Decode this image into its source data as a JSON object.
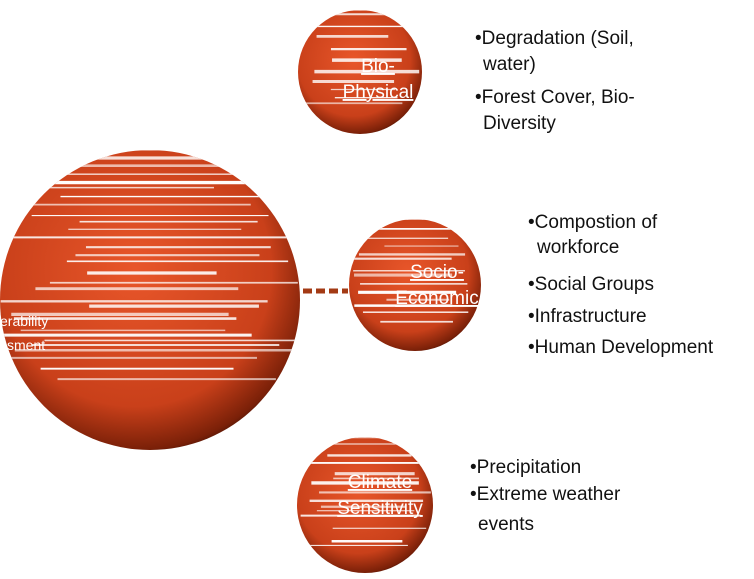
{
  "center": {
    "label_lines": [
      "erability",
      "ssment"
    ]
  },
  "nodes": [
    {
      "label_lines": [
        "Bio-",
        "Physical"
      ],
      "bullets": [
        "•Degradation (Soil,",
        "water)",
        "•Forest Cover, Bio-",
        "Diversity"
      ]
    },
    {
      "label_lines": [
        "Socio-",
        "Economic"
      ],
      "bullets": [
        "•Compostion of",
        "workforce",
        "•Social Groups",
        "•Infrastructure",
        "•Human Development"
      ]
    },
    {
      "label_lines": [
        "Climate",
        "Sensitivity"
      ],
      "bullets": [
        "•Precipitation",
        "•Extreme weather",
        "events"
      ]
    }
  ]
}
